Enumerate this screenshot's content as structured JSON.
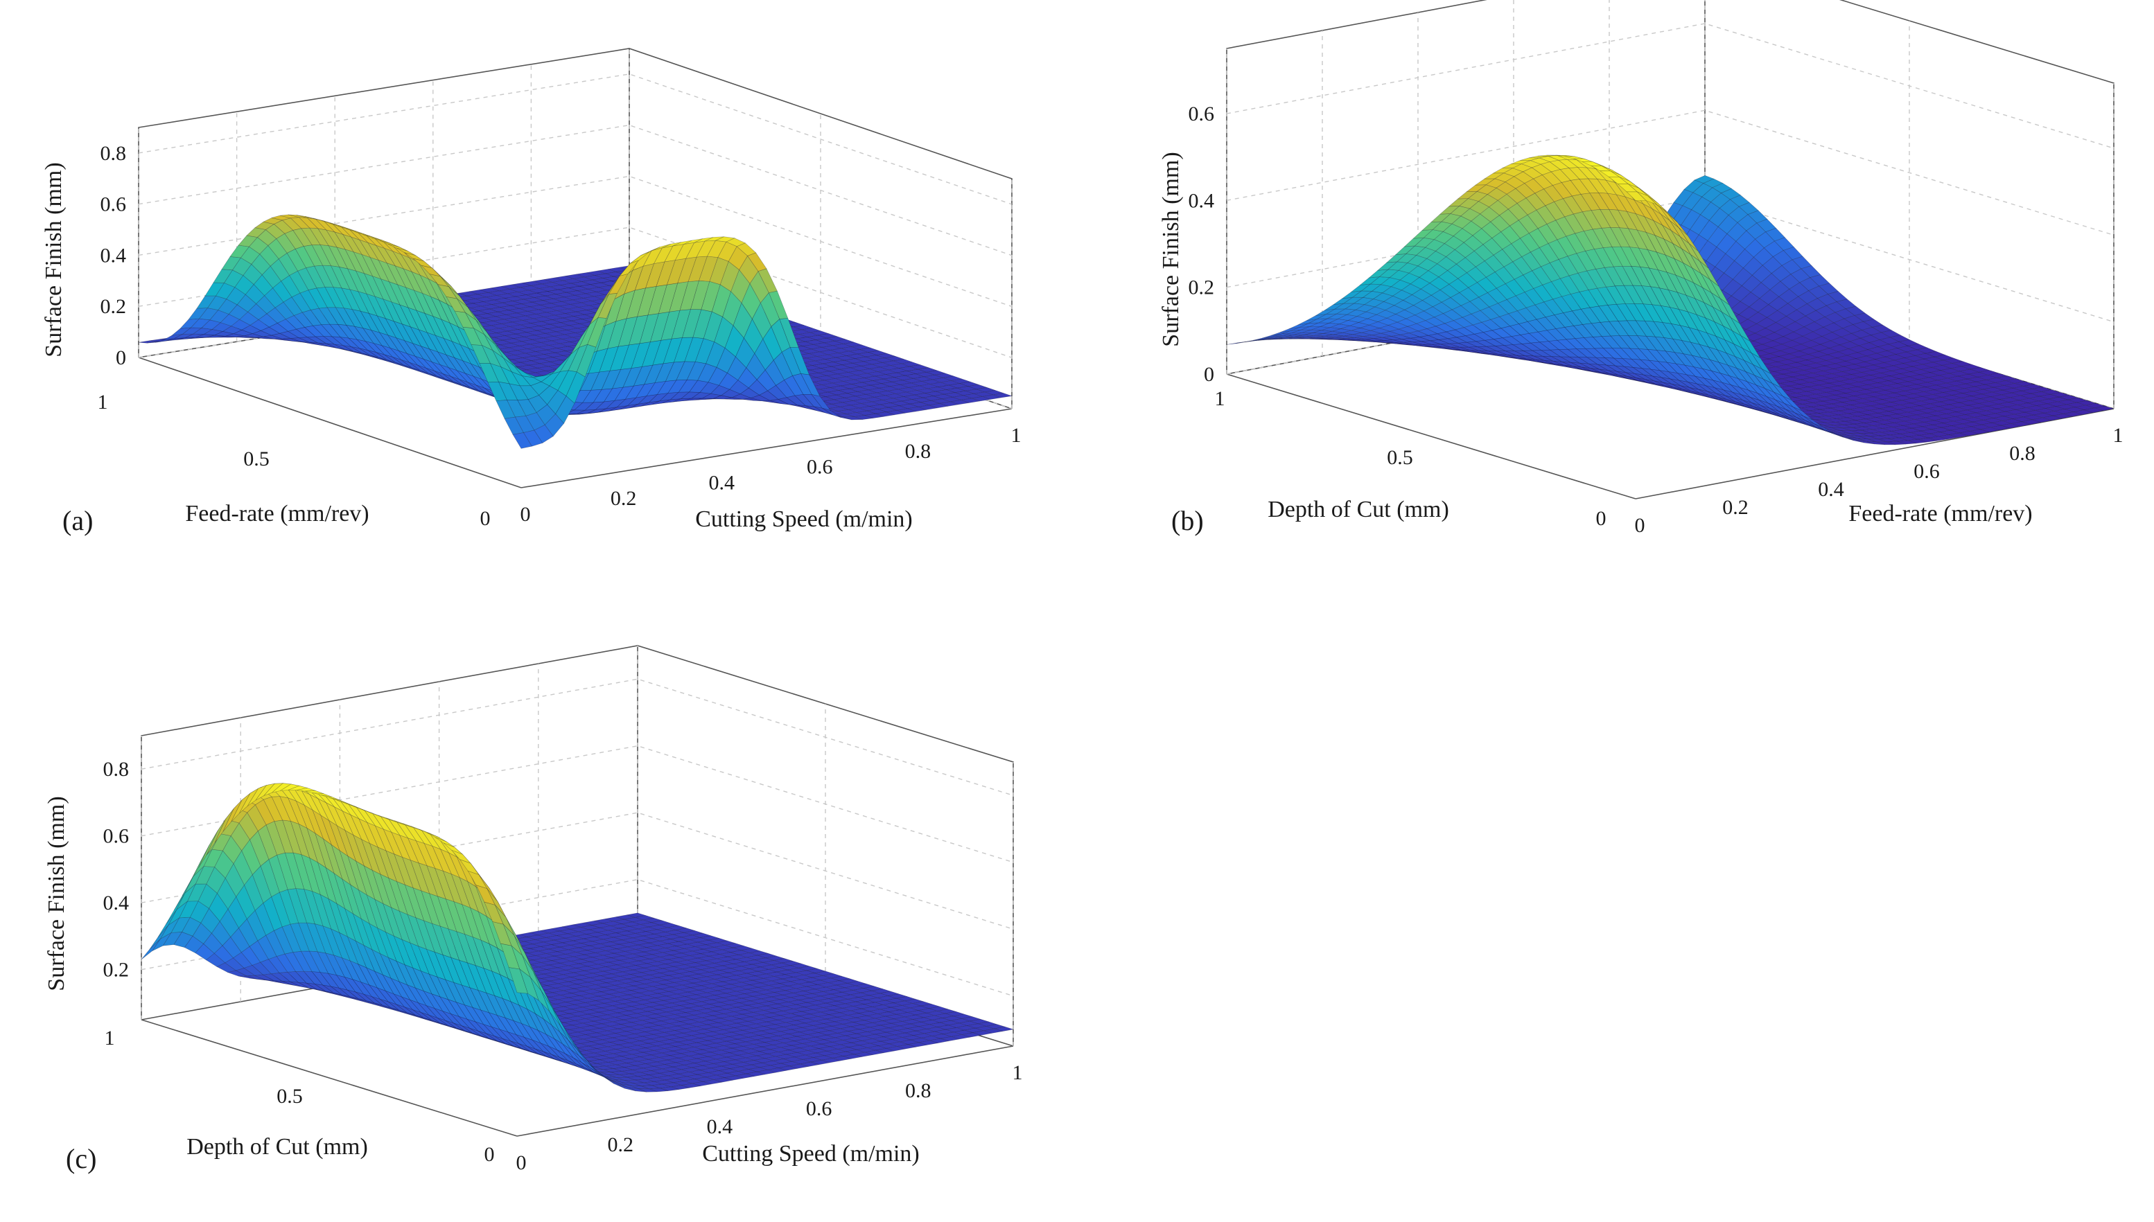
{
  "chart_data": [
    {
      "type": "surface",
      "panel_label": "(a)",
      "xlabel": "Cutting Speed (m/min)",
      "ylabel": "Feed-rate (mm/rev)",
      "zlabel": "Surface Finish (mm)",
      "xlim": [
        0,
        1
      ],
      "ylim": [
        0,
        1
      ],
      "zlim": [
        0,
        0.9
      ],
      "xticks": [
        "0",
        "0.2",
        "0.4",
        "0.6",
        "0.8",
        "1"
      ],
      "yticks": [
        "0",
        "0.5",
        "1"
      ],
      "zticks": [
        "0",
        "0.2",
        "0.4",
        "0.6",
        "0.8"
      ],
      "grid": true,
      "colormap": [
        "#3e26a8",
        "#2c6fe4",
        "#12b2c8",
        "#53c884",
        "#d5bb2c",
        "#f9f926"
      ],
      "surface_peaks": [
        {
          "x": 0.0,
          "y": 0.45,
          "z": 0.78
        },
        {
          "x": 0.35,
          "y": 0.0,
          "z": 0.86
        }
      ],
      "base_level": 0.05
    },
    {
      "type": "surface",
      "panel_label": "(b)",
      "xlabel": "Feed-rate (mm/rev)",
      "ylabel": "Depth of Cut (mm)",
      "zlabel": "Surface Finish (mm)",
      "xlim": [
        0,
        1
      ],
      "ylim": [
        0,
        1
      ],
      "zlim": [
        0,
        0.75
      ],
      "xticks": [
        "0",
        "0.2",
        "0.4",
        "0.6",
        "0.8",
        "1"
      ],
      "yticks": [
        "0",
        "0.5",
        "1"
      ],
      "zticks": [
        "0",
        "0.2",
        "0.4",
        "0.6"
      ],
      "grid": true,
      "colormap": [
        "#3e26a8",
        "#2c6fe4",
        "#12b2c8",
        "#53c884",
        "#d5bb2c",
        "#f9f926"
      ],
      "surface_peaks": [
        {
          "x": 0.0,
          "y": 0.15,
          "z": 0.74
        },
        {
          "x": 1.0,
          "y": 1.0,
          "z": 0.25
        }
      ],
      "base_level": 0.0
    },
    {
      "type": "surface",
      "panel_label": "(c)",
      "xlabel": "Cutting Speed (m/min)",
      "ylabel": "Depth of Cut (mm)",
      "zlabel": "Surface Finish (mm)",
      "xlim": [
        0,
        1
      ],
      "ylim": [
        0,
        1
      ],
      "zlim": [
        0.05,
        0.9
      ],
      "xticks": [
        "0",
        "0.2",
        "0.4",
        "0.6",
        "0.8",
        "1"
      ],
      "yticks": [
        "0",
        "0.5",
        "1"
      ],
      "zticks": [
        "0.2",
        "0.4",
        "0.6",
        "0.8"
      ],
      "grid": true,
      "colormap": [
        "#3e26a8",
        "#2c6fe4",
        "#12b2c8",
        "#53c884",
        "#d5bb2c",
        "#f9f926"
      ],
      "surface_peaks": [
        {
          "x": 0.0,
          "y": 0.35,
          "z": 0.88
        },
        {
          "x": 0.05,
          "y": 0.8,
          "z": 0.76
        }
      ],
      "base_level": 0.1
    }
  ]
}
